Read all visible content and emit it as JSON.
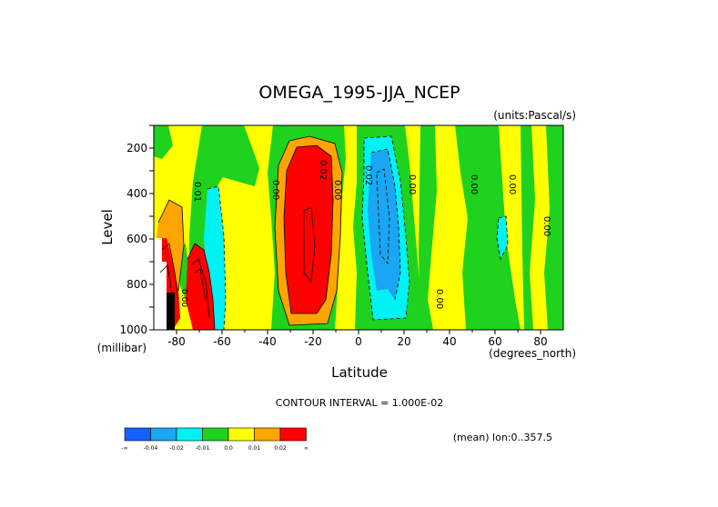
{
  "chart_data": {
    "type": "heatmap",
    "subtype": "filled-contour",
    "title": "OMEGA_1995-JJA_NCEP",
    "units_label": "(units:Pascal/s)",
    "xlabel": "Latitude",
    "x_unit_label": "(degrees_north)",
    "ylabel": "Level",
    "y_unit_label": "(millibar)",
    "xlim": [
      -90,
      90
    ],
    "ylim": [
      1000,
      100
    ],
    "y_inverted": true,
    "x_ticks": [
      "-80",
      "-60",
      "-40",
      "-20",
      "0",
      "20",
      "40",
      "60",
      "80"
    ],
    "y_ticks": [
      "200",
      "400",
      "600",
      "800",
      "1000"
    ],
    "contour_interval_text": "CONTOUR INTERVAL = 1.000E-02",
    "mean_text": "(mean) lon:0..357.5",
    "contour_labels": [
      "0.01",
      "0.00",
      "0.02",
      "0.00",
      "0.02",
      "0.00",
      "0.00",
      "0.00",
      "0.00",
      "0.00",
      "0.00"
    ],
    "legend": {
      "colors": [
        "#1560ff",
        "#1aa6f2",
        "#00f2f2",
        "#1ed21e",
        "#ffff00",
        "#ffa500",
        "#ff0000"
      ],
      "labels": [
        "-∞",
        "-0.04",
        "-0.02",
        "-0.01",
        "0.0",
        "0.01",
        "0.02",
        "∞"
      ]
    },
    "bands": [
      {
        "level": "0.0 to 0.01",
        "color": "#ffff00"
      },
      {
        "level": "-0.01 to 0.0",
        "color": "#1ed21e"
      },
      {
        "level": "0.01 to 0.02",
        "color": "#ffa500"
      },
      {
        "level": "> 0.02",
        "color": "#ff0000"
      },
      {
        "level": "-0.02 to -0.01",
        "color": "#00f2f2"
      },
      {
        "level": "-0.04 to -0.02",
        "color": "#1aa6f2"
      }
    ]
  }
}
